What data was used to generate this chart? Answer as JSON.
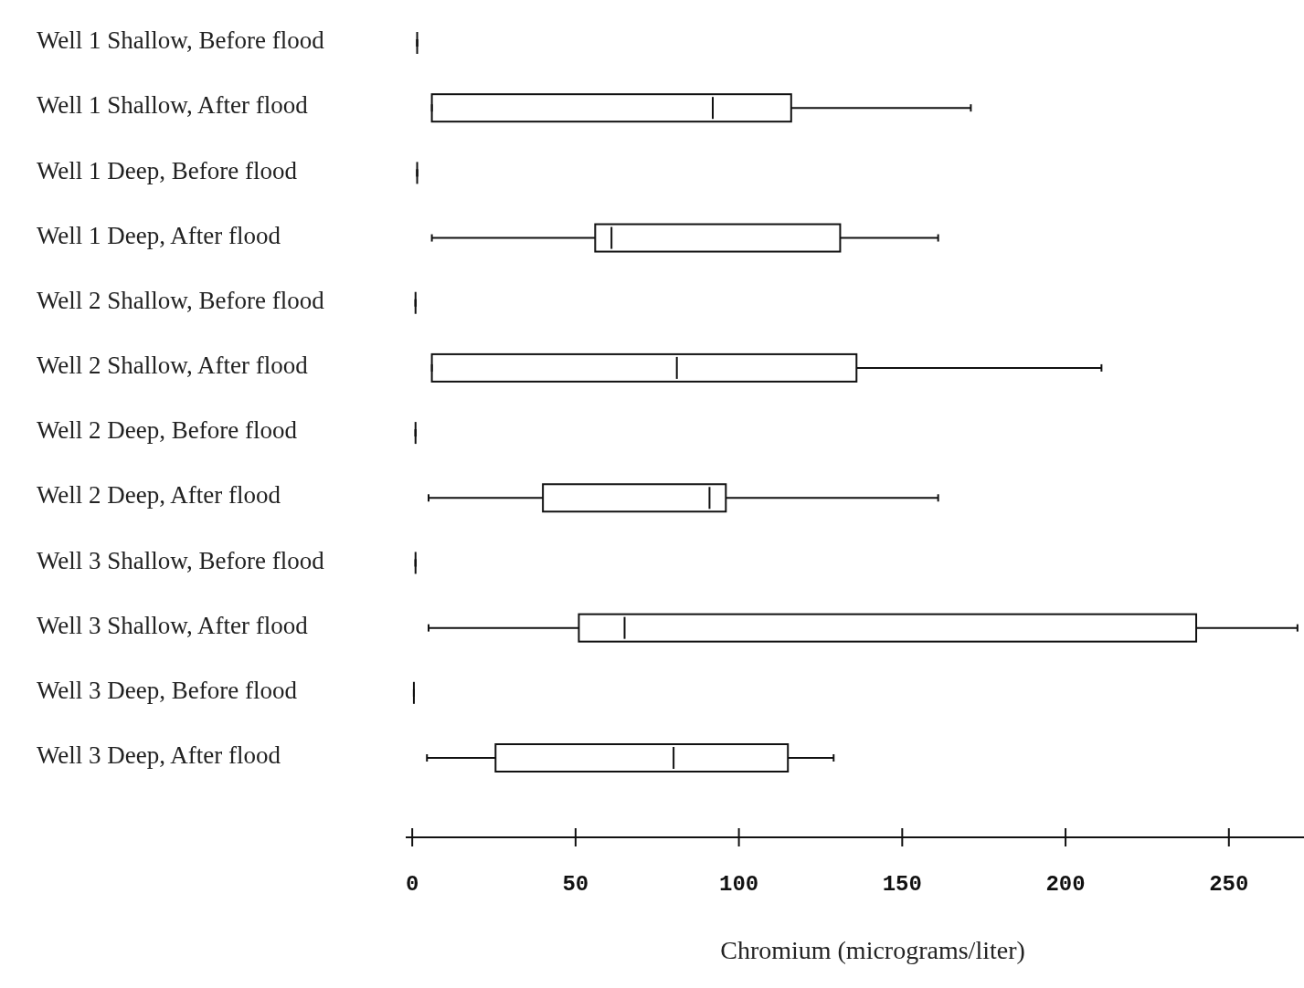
{
  "chart_data": {
    "type": "box",
    "orientation": "horizontal",
    "xlabel": "Chromium (micrograms/liter)",
    "categories": [
      "Well 1 Shallow, Before flood",
      "Well 1 Shallow, After flood",
      "Well 1 Deep, Before flood",
      "Well 1 Deep, After flood",
      "Well 2 Shallow, Before flood",
      "Well 2 Shallow, After flood",
      "Well 2 Deep, Before flood",
      "Well 2 Deep, After flood",
      "Well 3 Shallow, Before flood",
      "Well 3 Shallow, After flood",
      "Well 3 Deep, Before flood",
      "Well 3 Deep, After flood"
    ],
    "boxes": [
      {
        "low": 1.5,
        "q1": 1.5,
        "median": 1.5,
        "q3": 1.5,
        "high": 1.5
      },
      {
        "low": 6,
        "q1": 6,
        "median": 92,
        "q3": 116,
        "high": 171
      },
      {
        "low": 1.5,
        "q1": 1.5,
        "median": 1.5,
        "q3": 1.5,
        "high": 1.5
      },
      {
        "low": 6,
        "q1": 56,
        "median": 61,
        "q3": 131,
        "high": 161
      },
      {
        "low": 1,
        "q1": 1,
        "median": 1,
        "q3": 1,
        "high": 1
      },
      {
        "low": 6,
        "q1": 6,
        "median": 81,
        "q3": 136,
        "high": 211
      },
      {
        "low": 1,
        "q1": 1,
        "median": 1,
        "q3": 1,
        "high": 1
      },
      {
        "low": 5,
        "q1": 40,
        "median": 91,
        "q3": 96,
        "high": 161
      },
      {
        "low": 1,
        "q1": 1,
        "median": 1,
        "q3": 1,
        "high": 1
      },
      {
        "low": 5,
        "q1": 51,
        "median": 65,
        "q3": 240,
        "high": 271
      },
      {
        "low": 0.5,
        "q1": 0.5,
        "median": 0.5,
        "q3": 0.5,
        "high": 0.5
      },
      {
        "low": 4.5,
        "q1": 25.5,
        "median": 80,
        "q3": 115,
        "high": 129
      }
    ],
    "xlim": [
      -2,
      273
    ],
    "xticks": [
      0,
      50,
      100,
      150,
      200,
      250
    ]
  }
}
